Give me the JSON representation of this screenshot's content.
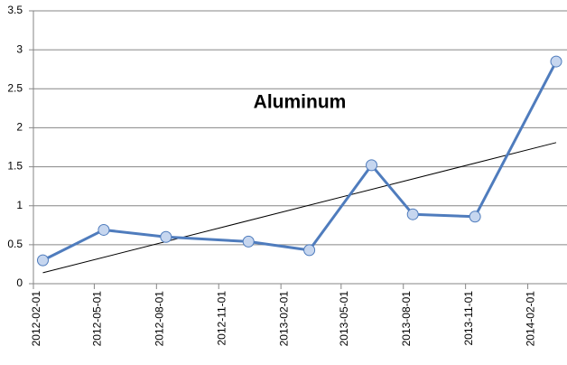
{
  "chart_data": {
    "type": "line",
    "title": "Aluminum",
    "x": [
      "2012-02-15",
      "2012-05-15",
      "2012-08-15",
      "2012-12-15",
      "2013-03-15",
      "2013-06-15",
      "2013-08-15",
      "2013-11-15",
      "2014-03-15"
    ],
    "series": [
      {
        "name": "Aluminum",
        "color": "#4f7cbd",
        "marker_fill": "#c6d6ef",
        "values": [
          0.3,
          0.69,
          0.6,
          0.54,
          0.43,
          1.52,
          0.89,
          0.86,
          2.85
        ]
      }
    ],
    "trendline": {
      "x": [
        "2012-02-15",
        "2014-03-15"
      ],
      "values": [
        0.14,
        1.81
      ],
      "color": "#000000"
    },
    "xlim": [
      "2012-02-01",
      "2014-03-31"
    ],
    "xticks": [
      "2012-02-01",
      "2012-05-01",
      "2012-08-01",
      "2012-11-01",
      "2013-02-01",
      "2013-05-01",
      "2013-08-01",
      "2013-11-01",
      "2014-02-01"
    ],
    "ylim": [
      0,
      3.5
    ],
    "yticks": [
      0,
      0.5,
      1,
      1.5,
      2,
      2.5,
      3,
      3.5
    ],
    "grid": true,
    "legend": false
  }
}
